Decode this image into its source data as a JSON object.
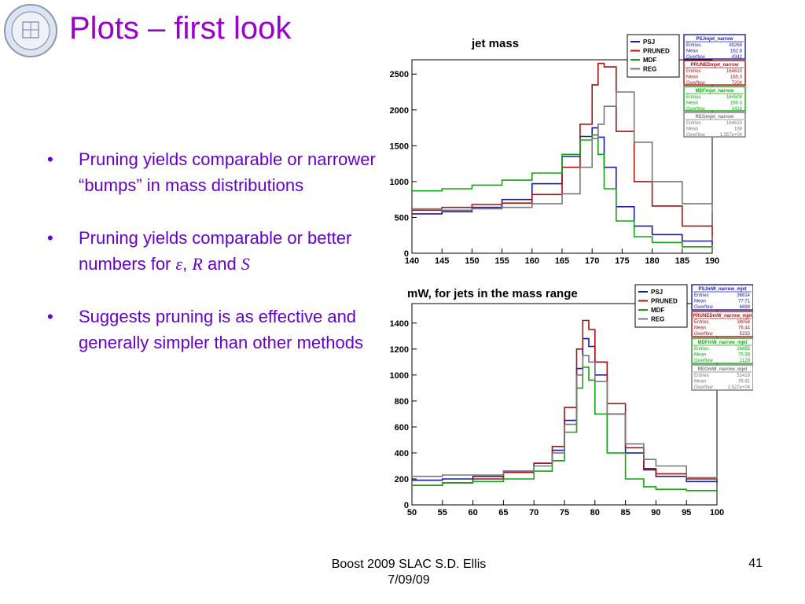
{
  "slide": {
    "title": "Plots – first look",
    "bullets": [
      {
        "text": "Pruning yields comparable or narrower “bumps” in mass distributions"
      },
      {
        "text_before": "Pruning yields comparable or better numbers for ",
        "sym1": "ε",
        "comma": ", ",
        "sym2": "R",
        "and": " and ",
        "sym3": "S"
      },
      {
        "text": "Suggests pruning is as effective and generally simpler than other methods"
      }
    ],
    "footer_line1": "Boost 2009  SLAC      S.D. Ellis",
    "footer_line2": "7/09/09",
    "page_number": "41"
  },
  "colors": {
    "title": "#9900cc",
    "bullet_text": "#6600cc",
    "PSJ": "#1a1aa6",
    "PRUNED": "#aa1111",
    "MDF": "#11a611",
    "REG": "#777777"
  },
  "chart_data": [
    {
      "type": "line",
      "step": true,
      "title": "jet mass",
      "xlim": [
        140,
        190
      ],
      "ylim": [
        0,
        2700
      ],
      "xticks": [
        "140",
        "145",
        "150",
        "155",
        "160",
        "165",
        "170",
        "175",
        "180",
        "185",
        "190"
      ],
      "yticks": [
        "0",
        "500",
        "1000",
        "1500",
        "2000",
        "2500"
      ],
      "xtick_values": [
        140,
        145,
        150,
        155,
        160,
        165,
        170,
        175,
        180,
        185,
        190
      ],
      "ytick_values": [
        0,
        500,
        1000,
        1500,
        2000,
        2500
      ],
      "legend": {
        "placement": "top-right",
        "entries": [
          "PSJ",
          "PRUNED",
          "MDF",
          "REG"
        ]
      },
      "x": [
        140,
        145,
        150,
        155,
        160,
        165,
        168,
        170,
        171,
        172,
        174,
        177,
        180,
        185,
        190
      ],
      "series": [
        {
          "name": "PSJ",
          "values": [
            550,
            580,
            640,
            750,
            970,
            1350,
            1630,
            1750,
            1620,
            1200,
            650,
            380,
            260,
            170,
            110
          ]
        },
        {
          "name": "PRUNED",
          "values": [
            600,
            640,
            680,
            700,
            820,
            1200,
            1800,
            2350,
            2650,
            2600,
            1700,
            1000,
            660,
            380,
            230
          ]
        },
        {
          "name": "MDF",
          "values": [
            870,
            900,
            950,
            1020,
            1120,
            1380,
            1580,
            1650,
            1380,
            900,
            450,
            230,
            150,
            90,
            60
          ]
        },
        {
          "name": "REG",
          "values": [
            620,
            600,
            620,
            640,
            690,
            830,
            1200,
            1600,
            1800,
            2050,
            2250,
            1550,
            1000,
            690,
            570
          ]
        }
      ],
      "stats": [
        {
          "name": "PSJmjet_narrow",
          "rows": [
            [
              "Entries",
              "89269"
            ],
            [
              "Mean",
              "162.8"
            ],
            [
              "Overflow",
              "4342"
            ]
          ]
        },
        {
          "name": "PRUNEDmjet_narrow",
          "rows": [
            [
              "Entries",
              "164610"
            ],
            [
              "Mean",
              "165.3"
            ],
            [
              "Overflow",
              "7204"
            ]
          ]
        },
        {
          "name": "MDFmjet_narrow",
          "rows": [
            [
              "Entries",
              "164508"
            ],
            [
              "Mean",
              "160.3"
            ],
            [
              "Overflow",
              "1418"
            ]
          ]
        },
        {
          "name": "REGmjet_narrow",
          "rows": [
            [
              "Entries",
              "164610"
            ],
            [
              "Mean",
              "168"
            ],
            [
              "Overflow",
              "1.357e+04"
            ]
          ]
        }
      ]
    },
    {
      "type": "line",
      "step": true,
      "title": "mW, for jets in the mass range",
      "xlim": [
        50,
        100
      ],
      "ylim": [
        0,
        1550
      ],
      "xticks": [
        "50",
        "55",
        "60",
        "65",
        "70",
        "75",
        "80",
        "85",
        "90",
        "95",
        "100"
      ],
      "yticks": [
        "0",
        "200",
        "400",
        "600",
        "800",
        "1000",
        "1200",
        "1400"
      ],
      "xtick_values": [
        50,
        55,
        60,
        65,
        70,
        75,
        80,
        85,
        90,
        95,
        100
      ],
      "ytick_values": [
        0,
        200,
        400,
        600,
        800,
        1000,
        1200,
        1400
      ],
      "legend": {
        "placement": "top-right",
        "entries": [
          "PSJ",
          "PRUNED",
          "MDF",
          "REG"
        ]
      },
      "x": [
        50,
        55,
        60,
        65,
        70,
        73,
        75,
        77,
        78,
        79,
        80,
        82,
        85,
        88,
        90,
        95,
        100
      ],
      "series": [
        {
          "name": "PSJ",
          "values": [
            190,
            200,
            220,
            260,
            320,
            420,
            650,
            1050,
            1280,
            1220,
            1000,
            700,
            400,
            270,
            220,
            180,
            170
          ]
        },
        {
          "name": "PRUNED",
          "values": [
            150,
            170,
            200,
            250,
            320,
            450,
            750,
            1200,
            1420,
            1350,
            1100,
            780,
            440,
            280,
            240,
            200,
            180
          ]
        },
        {
          "name": "MDF",
          "values": [
            150,
            170,
            180,
            200,
            260,
            340,
            560,
            900,
            1060,
            960,
            700,
            400,
            200,
            140,
            120,
            110,
            100
          ]
        },
        {
          "name": "REG",
          "values": [
            220,
            230,
            230,
            260,
            300,
            400,
            620,
            1000,
            1150,
            1100,
            950,
            700,
            470,
            350,
            300,
            210,
            200
          ]
        }
      ],
      "stats": [
        {
          "name": "PSJmW_narrow_mjet",
          "rows": [
            [
              "Entries",
              "36814"
            ],
            [
              "Mean",
              "77.71"
            ],
            [
              "Overflow",
              "6898"
            ]
          ]
        },
        {
          "name": "PRUNEDmW_narrow_mjet",
          "rows": [
            [
              "Entries",
              "38058"
            ],
            [
              "Mean",
              "76.44"
            ],
            [
              "Overflow",
              "5233"
            ]
          ]
        },
        {
          "name": "MDFmW_narrow_mjet",
          "rows": [
            [
              "Entries",
              "26855"
            ],
            [
              "Mean",
              "75.38"
            ],
            [
              "Overflow",
              "2129"
            ]
          ]
        },
        {
          "name": "REGmW_narrow_mjet",
          "rows": [
            [
              "Entries",
              "51419"
            ],
            [
              "Mean",
              "76.81"
            ],
            [
              "Overflow",
              "1.527e+04"
            ]
          ]
        }
      ]
    }
  ]
}
